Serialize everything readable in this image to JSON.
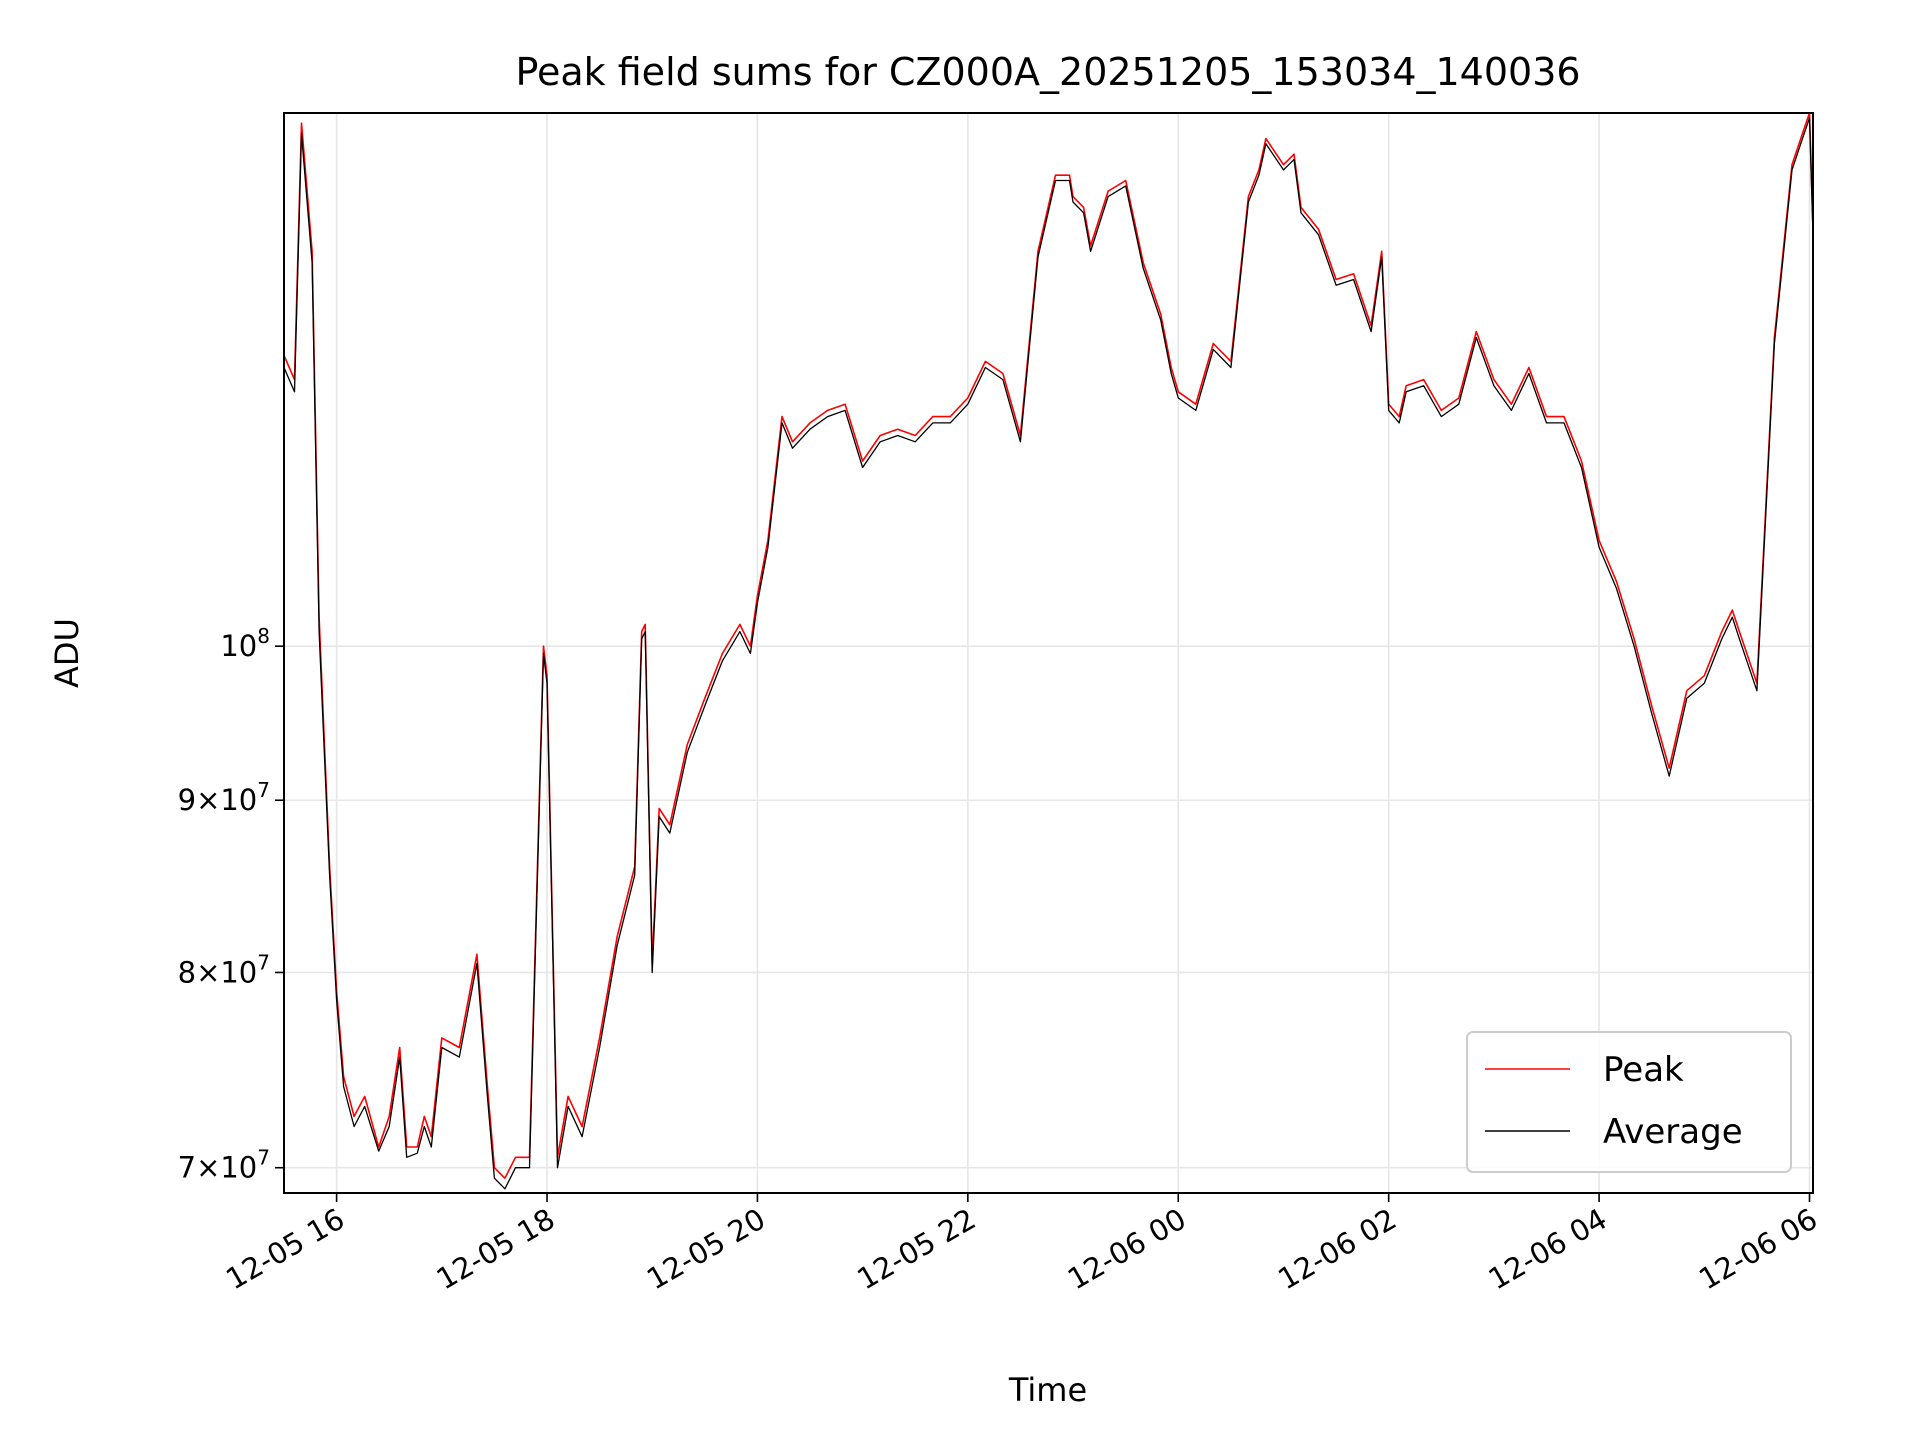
{
  "chart_data": {
    "type": "line",
    "title": "Peak field sums for CZ000A_20251205_153034_140036",
    "xlabel": "Time",
    "ylabel": "ADU",
    "yscale": "log",
    "xlim": [
      "2025-12-05T15:30",
      "2025-12-06T06:02"
    ],
    "ylim": [
      68800000,
      144000000
    ],
    "x_ticks": [
      {
        "value": "2025-12-05T16:00",
        "label": "12-05 16"
      },
      {
        "value": "2025-12-05T18:00",
        "label": "12-05 18"
      },
      {
        "value": "2025-12-05T20:00",
        "label": "12-05 20"
      },
      {
        "value": "2025-12-05T22:00",
        "label": "12-05 22"
      },
      {
        "value": "2025-12-06T00:00",
        "label": "12-06 00"
      },
      {
        "value": "2025-12-06T02:00",
        "label": "12-06 02"
      },
      {
        "value": "2025-12-06T04:00",
        "label": "12-06 04"
      },
      {
        "value": "2025-12-06T06:00",
        "label": "12-06 06"
      }
    ],
    "y_ticks": [
      {
        "value": 70000000,
        "mantissa": "7",
        "exponent": "7"
      },
      {
        "value": 80000000,
        "mantissa": "8",
        "exponent": "7"
      },
      {
        "value": 90000000,
        "mantissa": "9",
        "exponent": "7"
      },
      {
        "value": 100000000,
        "mantissa": "",
        "exponent": "8"
      }
    ],
    "grid": true,
    "legend_position": "lower-right",
    "series": [
      {
        "name": "Peak",
        "color": "#ff0000",
        "x": [
          "2025-12-05T15:30",
          "2025-12-05T15:36",
          "2025-12-05T15:40",
          "2025-12-05T15:46",
          "2025-12-05T15:50",
          "2025-12-05T15:56",
          "2025-12-05T16:00",
          "2025-12-05T16:04",
          "2025-12-05T16:10",
          "2025-12-05T16:16",
          "2025-12-05T16:24",
          "2025-12-05T16:30",
          "2025-12-05T16:36",
          "2025-12-05T16:40",
          "2025-12-05T16:46",
          "2025-12-05T16:50",
          "2025-12-05T16:54",
          "2025-12-05T17:00",
          "2025-12-05T17:10",
          "2025-12-05T17:20",
          "2025-12-05T17:26",
          "2025-12-05T17:30",
          "2025-12-05T17:36",
          "2025-12-05T17:42",
          "2025-12-05T17:50",
          "2025-12-05T17:58",
          "2025-12-05T18:00",
          "2025-12-05T18:06",
          "2025-12-05T18:12",
          "2025-12-05T18:20",
          "2025-12-05T18:30",
          "2025-12-05T18:40",
          "2025-12-05T18:50",
          "2025-12-05T18:54",
          "2025-12-05T18:56",
          "2025-12-05T19:00",
          "2025-12-05T19:04",
          "2025-12-05T19:10",
          "2025-12-05T19:20",
          "2025-12-05T19:30",
          "2025-12-05T19:40",
          "2025-12-05T19:50",
          "2025-12-05T19:56",
          "2025-12-05T20:00",
          "2025-12-05T20:06",
          "2025-12-05T20:14",
          "2025-12-05T20:20",
          "2025-12-05T20:30",
          "2025-12-05T20:40",
          "2025-12-05T20:50",
          "2025-12-05T21:00",
          "2025-12-05T21:10",
          "2025-12-05T21:20",
          "2025-12-05T21:30",
          "2025-12-05T21:40",
          "2025-12-05T21:50",
          "2025-12-05T22:00",
          "2025-12-05T22:10",
          "2025-12-05T22:20",
          "2025-12-05T22:30",
          "2025-12-05T22:40",
          "2025-12-05T22:50",
          "2025-12-05T22:58",
          "2025-12-05T23:00",
          "2025-12-05T23:06",
          "2025-12-05T23:10",
          "2025-12-05T23:20",
          "2025-12-05T23:30",
          "2025-12-05T23:40",
          "2025-12-05T23:50",
          "2025-12-05T23:56",
          "2025-12-06T00:00",
          "2025-12-06T00:10",
          "2025-12-06T00:20",
          "2025-12-06T00:30",
          "2025-12-06T00:40",
          "2025-12-06T00:46",
          "2025-12-06T00:50",
          "2025-12-06T01:00",
          "2025-12-06T01:06",
          "2025-12-06T01:10",
          "2025-12-06T01:20",
          "2025-12-06T01:30",
          "2025-12-06T01:40",
          "2025-12-06T01:50",
          "2025-12-06T01:56",
          "2025-12-06T02:00",
          "2025-12-06T02:06",
          "2025-12-06T02:10",
          "2025-12-06T02:20",
          "2025-12-06T02:30",
          "2025-12-06T02:40",
          "2025-12-06T02:50",
          "2025-12-06T03:00",
          "2025-12-06T03:10",
          "2025-12-06T03:20",
          "2025-12-06T03:30",
          "2025-12-06T03:40",
          "2025-12-06T03:50",
          "2025-12-06T04:00",
          "2025-12-06T04:10",
          "2025-12-06T04:20",
          "2025-12-06T04:30",
          "2025-12-06T04:40",
          "2025-12-06T04:50",
          "2025-12-06T05:00",
          "2025-12-06T05:10",
          "2025-12-06T05:16",
          "2025-12-06T05:20",
          "2025-12-06T05:30",
          "2025-12-06T05:40",
          "2025-12-06T05:50",
          "2025-12-06T05:56",
          "2025-12-06T06:00",
          "2025-12-06T06:02"
        ],
        "values": [
          122000000,
          120000000,
          143000000,
          131000000,
          102000000,
          86000000,
          79000000,
          74500000,
          72500000,
          73500000,
          71000000,
          72500000,
          76000000,
          71000000,
          71000000,
          72500000,
          71500000,
          76500000,
          76000000,
          81000000,
          74000000,
          70000000,
          69500000,
          70500000,
          70500000,
          100000000,
          98000000,
          70500000,
          73500000,
          72000000,
          76500000,
          82000000,
          86000000,
          101000000,
          101500000,
          80500000,
          89500000,
          88500000,
          93500000,
          96500000,
          99500000,
          101500000,
          100000000,
          103500000,
          107500000,
          117000000,
          115000000,
          116500000,
          117500000,
          118000000,
          113500000,
          115500000,
          116000000,
          115500000,
          117000000,
          117000000,
          118500000,
          121500000,
          120500000,
          115500000,
          131000000,
          138000000,
          138000000,
          136000000,
          135000000,
          131500000,
          136500000,
          137500000,
          130000000,
          125500000,
          121000000,
          119000000,
          118000000,
          123000000,
          121500000,
          136000000,
          138500000,
          141500000,
          139000000,
          140000000,
          135000000,
          133000000,
          128500000,
          129000000,
          124500000,
          131000000,
          118000000,
          117000000,
          119500000,
          120000000,
          117500000,
          118500000,
          124000000,
          120000000,
          118000000,
          121000000,
          117000000,
          117000000,
          113500000,
          107500000,
          104500000,
          100500000,
          96000000,
          92000000,
          97000000,
          98000000,
          101000000,
          102500000,
          101000000,
          97500000,
          123500000,
          139000000,
          142000000,
          144000000,
          133000000
        ]
      },
      {
        "name": "Average",
        "color": "#000000",
        "x": [
          "2025-12-05T15:30",
          "2025-12-05T15:36",
          "2025-12-05T15:40",
          "2025-12-05T15:46",
          "2025-12-05T15:50",
          "2025-12-05T15:56",
          "2025-12-05T16:00",
          "2025-12-05T16:04",
          "2025-12-05T16:10",
          "2025-12-05T16:16",
          "2025-12-05T16:24",
          "2025-12-05T16:30",
          "2025-12-05T16:36",
          "2025-12-05T16:40",
          "2025-12-05T16:46",
          "2025-12-05T16:50",
          "2025-12-05T16:54",
          "2025-12-05T17:00",
          "2025-12-05T17:10",
          "2025-12-05T17:20",
          "2025-12-05T17:26",
          "2025-12-05T17:30",
          "2025-12-05T17:36",
          "2025-12-05T17:42",
          "2025-12-05T17:50",
          "2025-12-05T17:58",
          "2025-12-05T18:00",
          "2025-12-05T18:06",
          "2025-12-05T18:12",
          "2025-12-05T18:20",
          "2025-12-05T18:30",
          "2025-12-05T18:40",
          "2025-12-05T18:50",
          "2025-12-05T18:54",
          "2025-12-05T18:56",
          "2025-12-05T19:00",
          "2025-12-05T19:04",
          "2025-12-05T19:10",
          "2025-12-05T19:20",
          "2025-12-05T19:30",
          "2025-12-05T19:40",
          "2025-12-05T19:50",
          "2025-12-05T19:56",
          "2025-12-05T20:00",
          "2025-12-05T20:06",
          "2025-12-05T20:14",
          "2025-12-05T20:20",
          "2025-12-05T20:30",
          "2025-12-05T20:40",
          "2025-12-05T20:50",
          "2025-12-05T21:00",
          "2025-12-05T21:10",
          "2025-12-05T21:20",
          "2025-12-05T21:30",
          "2025-12-05T21:40",
          "2025-12-05T21:50",
          "2025-12-05T22:00",
          "2025-12-05T22:10",
          "2025-12-05T22:20",
          "2025-12-05T22:30",
          "2025-12-05T22:40",
          "2025-12-05T22:50",
          "2025-12-05T22:58",
          "2025-12-05T23:00",
          "2025-12-05T23:06",
          "2025-12-05T23:10",
          "2025-12-05T23:20",
          "2025-12-05T23:30",
          "2025-12-05T23:40",
          "2025-12-05T23:50",
          "2025-12-05T23:56",
          "2025-12-06T00:00",
          "2025-12-06T00:10",
          "2025-12-06T00:20",
          "2025-12-06T00:30",
          "2025-12-06T00:40",
          "2025-12-06T00:46",
          "2025-12-06T00:50",
          "2025-12-06T01:00",
          "2025-12-06T01:06",
          "2025-12-06T01:10",
          "2025-12-06T01:20",
          "2025-12-06T01:30",
          "2025-12-06T01:40",
          "2025-12-06T01:50",
          "2025-12-06T01:56",
          "2025-12-06T02:00",
          "2025-12-06T02:06",
          "2025-12-06T02:10",
          "2025-12-06T02:20",
          "2025-12-06T02:30",
          "2025-12-06T02:40",
          "2025-12-06T02:50",
          "2025-12-06T03:00",
          "2025-12-06T03:10",
          "2025-12-06T03:20",
          "2025-12-06T03:30",
          "2025-12-06T03:40",
          "2025-12-06T03:50",
          "2025-12-06T04:00",
          "2025-12-06T04:10",
          "2025-12-06T04:20",
          "2025-12-06T04:30",
          "2025-12-06T04:40",
          "2025-12-06T04:50",
          "2025-12-06T05:00",
          "2025-12-06T05:10",
          "2025-12-06T05:16",
          "2025-12-06T05:20",
          "2025-12-06T05:30",
          "2025-12-06T05:40",
          "2025-12-06T05:50",
          "2025-12-06T05:56",
          "2025-12-06T06:00",
          "2025-12-06T06:02"
        ],
        "values": [
          121000000,
          119000000,
          142000000,
          130000000,
          101000000,
          85500000,
          78500000,
          74000000,
          72000000,
          73000000,
          70800000,
          72000000,
          75500000,
          70500000,
          70700000,
          72000000,
          71000000,
          76000000,
          75500000,
          80500000,
          73500000,
          69500000,
          69000000,
          70000000,
          70000000,
          99500000,
          97500000,
          70000000,
          73000000,
          71500000,
          76000000,
          81500000,
          85500000,
          100500000,
          101000000,
          80000000,
          89000000,
          88000000,
          93000000,
          96000000,
          99000000,
          101000000,
          99500000,
          103000000,
          107000000,
          116500000,
          114500000,
          116000000,
          117000000,
          117500000,
          113000000,
          115000000,
          115500000,
          115000000,
          116500000,
          116500000,
          118000000,
          121000000,
          120000000,
          115000000,
          130500000,
          137500000,
          137500000,
          135500000,
          134500000,
          131000000,
          136000000,
          137000000,
          129500000,
          125000000,
          120500000,
          118500000,
          117500000,
          122500000,
          121000000,
          135500000,
          138000000,
          141000000,
          138500000,
          139500000,
          134500000,
          132500000,
          128000000,
          128500000,
          124000000,
          130500000,
          117500000,
          116500000,
          119000000,
          119500000,
          117000000,
          118000000,
          123500000,
          119500000,
          117500000,
          120500000,
          116500000,
          116500000,
          113000000,
          107000000,
          104000000,
          100000000,
          95500000,
          91500000,
          96500000,
          97500000,
          100500000,
          102000000,
          100500000,
          97000000,
          123000000,
          138500000,
          141500000,
          143500000,
          132500000
        ]
      }
    ]
  }
}
